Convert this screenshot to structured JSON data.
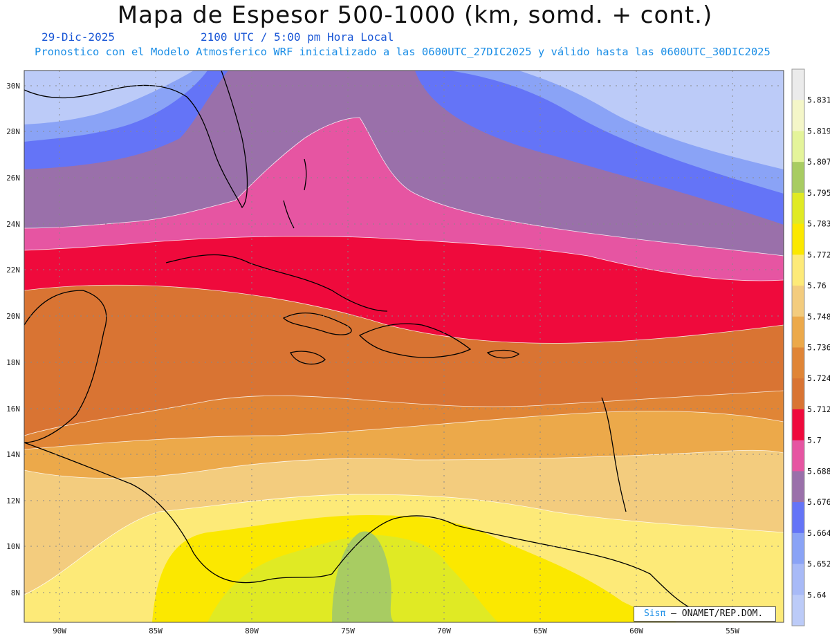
{
  "header": {
    "title": "Mapa de Espesor 500-1000 (km, somd. + cont.)",
    "date": "29-Dic-2025",
    "time": "2100 UTC / 5:00 pm Hora Local",
    "model_note": "Pronostico con el Modelo Atmosferico WRF inicializado a las 0600UTC_27DIC2025 y válido hasta las  0600UTC_30DIC2025"
  },
  "map": {
    "lat_labels": [
      "30N",
      "28N",
      "26N",
      "24N",
      "22N",
      "20N",
      "18N",
      "16N",
      "14N",
      "12N",
      "10N",
      "8N"
    ],
    "lon_labels": [
      "90W",
      "85W",
      "80W",
      "75W",
      "70W",
      "65W",
      "60W",
      "55W"
    ]
  },
  "colorbar": {
    "labels": [
      "5.831",
      "5.819",
      "5.807",
      "5.795",
      "5.783",
      "5.772",
      "5.76",
      "5.748",
      "5.736",
      "5.724",
      "5.712",
      "5.7",
      "5.688",
      "5.676",
      "5.664",
      "5.652",
      "5.64"
    ],
    "colors": [
      "#ebebeb",
      "#f4f6c8",
      "#e4f49a",
      "#a8cc62",
      "#e0ea24",
      "#fbe800",
      "#fdea78",
      "#f3cc7e",
      "#eca94a",
      "#e08536",
      "#d97433",
      "#ef0a3c",
      "#e655a2",
      "#9a70aa",
      "#6474f7",
      "#8aa3f6",
      "#a8baf7",
      "#bccbf8"
    ]
  },
  "credit": {
    "brand": "Sisπ",
    "text": " – ONAMET/REP.DOM."
  }
}
